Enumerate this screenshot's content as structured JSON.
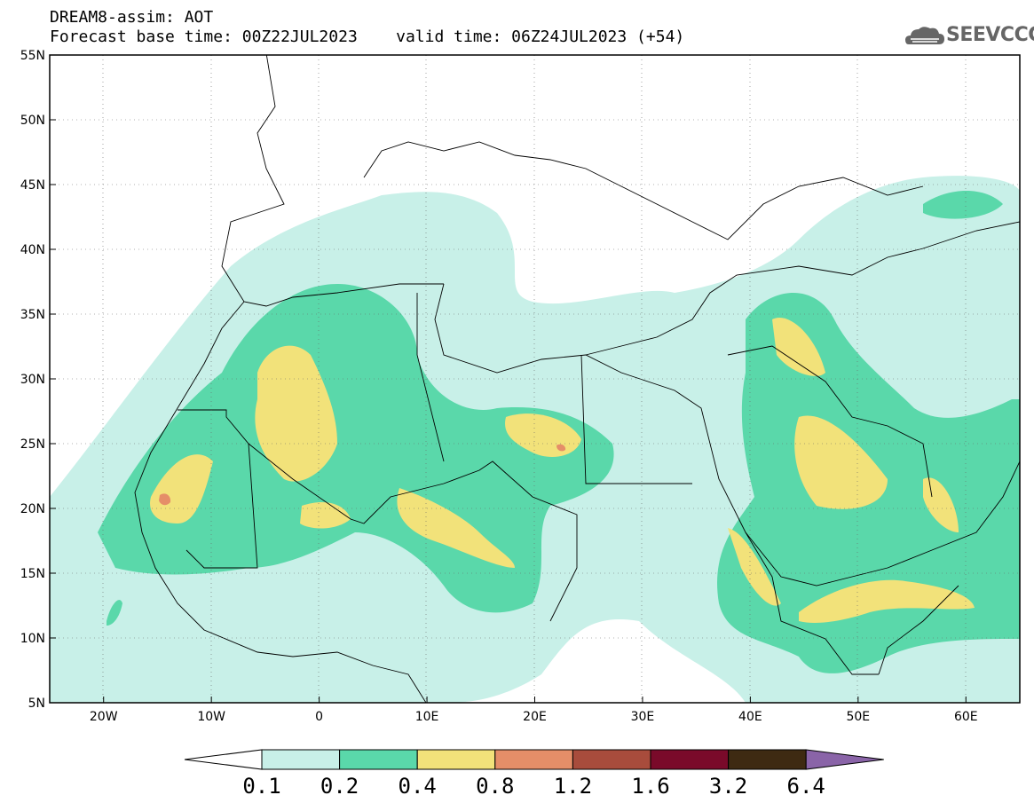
{
  "header": {
    "title": "DREAM8-assim: AOT",
    "subtitle": "Forecast base time: 00Z22JUL2023    valid time: 06Z24JUL2023 (+54)"
  },
  "logo": {
    "text": "SEEVCCC",
    "icon": "cloud-logo-icon"
  },
  "map": {
    "lon_range": [
      -25,
      65
    ],
    "lat_range": [
      5,
      55
    ],
    "lon_ticks": [
      {
        "value": -20,
        "label": "20W"
      },
      {
        "value": -10,
        "label": "10W"
      },
      {
        "value": 0,
        "label": "0"
      },
      {
        "value": 10,
        "label": "10E"
      },
      {
        "value": 20,
        "label": "20E"
      },
      {
        "value": 30,
        "label": "30E"
      },
      {
        "value": 40,
        "label": "40E"
      },
      {
        "value": 50,
        "label": "50E"
      },
      {
        "value": 60,
        "label": "60E"
      }
    ],
    "lat_ticks": [
      {
        "value": 55,
        "label": "55N"
      },
      {
        "value": 50,
        "label": "50N"
      },
      {
        "value": 45,
        "label": "45N"
      },
      {
        "value": 40,
        "label": "40N"
      },
      {
        "value": 35,
        "label": "35N"
      },
      {
        "value": 30,
        "label": "30N"
      },
      {
        "value": 25,
        "label": "25N"
      },
      {
        "value": 20,
        "label": "20N"
      },
      {
        "value": 15,
        "label": "15N"
      },
      {
        "value": 10,
        "label": "10N"
      },
      {
        "value": 5,
        "label": "5N"
      }
    ],
    "grid": "dotted"
  },
  "colorbar": {
    "labels": [
      "0.1",
      "0.2",
      "0.4",
      "0.8",
      "1.2",
      "1.6",
      "3.2",
      "6.4"
    ],
    "colors": [
      "#c8f0e8",
      "#5ad8aa",
      "#f2e27a",
      "#e58e68",
      "#a84c3c",
      "#7a0a2a",
      "#3e2a12",
      "#8a64a8"
    ],
    "below_color": "#ffffff"
  }
}
